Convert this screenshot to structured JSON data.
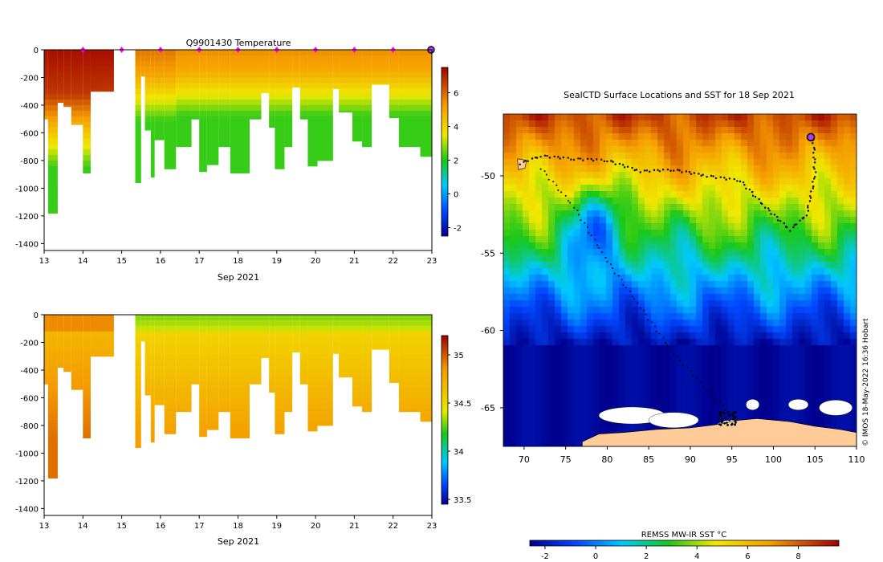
{
  "chart_data": [
    {
      "id": "temperature-section",
      "type": "heatmap",
      "title": "Q9901430  Temperature",
      "xlabel": "Sep 2021",
      "x_ticks": [
        "13",
        "14",
        "15",
        "16",
        "17",
        "18",
        "19",
        "20",
        "21",
        "22",
        "23"
      ],
      "xlim": [
        13,
        23
      ],
      "y_ticks": [
        "0",
        "-200",
        "-400",
        "-600",
        "-800",
        "-1000",
        "-1200",
        "-1400"
      ],
      "ylim": [
        -1450,
        0
      ],
      "colorbar_ticks": [
        "-2",
        "0",
        "2",
        "4",
        "6"
      ],
      "clim": [
        -2.5,
        7.5
      ],
      "surface_markers_day": [
        14,
        15,
        16,
        17,
        18,
        19,
        20,
        21,
        22
      ],
      "latest_marker_day": 23,
      "casts": [
        {
          "t0": 13.0,
          "t1": 13.1,
          "depth": 500
        },
        {
          "t0": 13.1,
          "t1": 13.35,
          "depth": 1180
        },
        {
          "t0": 13.35,
          "t1": 13.5,
          "depth": 380
        },
        {
          "t0": 13.5,
          "t1": 13.7,
          "depth": 410
        },
        {
          "t0": 13.7,
          "t1": 14.0,
          "depth": 540
        },
        {
          "t0": 14.0,
          "t1": 14.2,
          "depth": 890
        },
        {
          "t0": 14.2,
          "t1": 14.8,
          "depth": 300
        },
        {
          "t0": 15.35,
          "t1": 15.5,
          "depth": 960
        },
        {
          "t0": 15.5,
          "t1": 15.6,
          "depth": 190
        },
        {
          "t0": 15.6,
          "t1": 15.75,
          "depth": 580
        },
        {
          "t0": 15.75,
          "t1": 15.85,
          "depth": 920
        },
        {
          "t0": 15.85,
          "t1": 16.1,
          "depth": 650
        },
        {
          "t0": 16.1,
          "t1": 16.4,
          "depth": 860
        },
        {
          "t0": 16.4,
          "t1": 16.8,
          "depth": 700
        },
        {
          "t0": 16.8,
          "t1": 17.0,
          "depth": 500
        },
        {
          "t0": 17.0,
          "t1": 17.2,
          "depth": 880
        },
        {
          "t0": 17.2,
          "t1": 17.5,
          "depth": 830
        },
        {
          "t0": 17.5,
          "t1": 17.8,
          "depth": 700
        },
        {
          "t0": 17.8,
          "t1": 18.3,
          "depth": 890
        },
        {
          "t0": 18.3,
          "t1": 18.6,
          "depth": 500
        },
        {
          "t0": 18.6,
          "t1": 18.8,
          "depth": 310
        },
        {
          "t0": 18.8,
          "t1": 18.95,
          "depth": 560
        },
        {
          "t0": 18.95,
          "t1": 19.2,
          "depth": 860
        },
        {
          "t0": 19.2,
          "t1": 19.4,
          "depth": 700
        },
        {
          "t0": 19.4,
          "t1": 19.6,
          "depth": 270
        },
        {
          "t0": 19.6,
          "t1": 19.8,
          "depth": 500
        },
        {
          "t0": 19.8,
          "t1": 20.05,
          "depth": 840
        },
        {
          "t0": 20.05,
          "t1": 20.45,
          "depth": 800
        },
        {
          "t0": 20.45,
          "t1": 20.6,
          "depth": 280
        },
        {
          "t0": 20.6,
          "t1": 20.95,
          "depth": 450
        },
        {
          "t0": 20.95,
          "t1": 21.2,
          "depth": 660
        },
        {
          "t0": 21.2,
          "t1": 21.45,
          "depth": 700
        },
        {
          "t0": 21.45,
          "t1": 21.9,
          "depth": 250
        },
        {
          "t0": 21.9,
          "t1": 22.15,
          "depth": 490
        },
        {
          "t0": 22.15,
          "t1": 22.7,
          "depth": 700
        },
        {
          "t0": 22.7,
          "t1": 23.0,
          "depth": 770
        }
      ]
    },
    {
      "id": "salinity-section",
      "type": "heatmap",
      "title": "",
      "xlabel": "Sep 2021",
      "x_ticks": [
        "13",
        "14",
        "15",
        "16",
        "17",
        "18",
        "19",
        "20",
        "21",
        "22",
        "23"
      ],
      "xlim": [
        13,
        23
      ],
      "y_ticks": [
        "0",
        "-200",
        "-400",
        "-600",
        "-800",
        "-1000",
        "-1200",
        "-1400"
      ],
      "ylim": [
        -1450,
        0
      ],
      "colorbar_ticks": [
        "33.5",
        "34",
        "34.5",
        "35"
      ],
      "clim": [
        33.45,
        35.2
      ]
    },
    {
      "id": "sst-map",
      "type": "heatmap",
      "title": "SealCTD Surface Locations and SST for 18 Sep 2021",
      "x_ticks": [
        "70",
        "75",
        "80",
        "85",
        "90",
        "95",
        "100",
        "105",
        "110"
      ],
      "xlim": [
        67.5,
        110
      ],
      "y_ticks": [
        "-50",
        "-55",
        "-60",
        "-65"
      ],
      "ylim": [
        -67.5,
        -46
      ],
      "colorbar_label": "REMSS MW-IR SST °C",
      "colorbar_ticks": [
        "-2",
        "0",
        "2",
        "4",
        "6",
        "8"
      ],
      "clim": [
        -2.6,
        9.6
      ],
      "track_waypoints": [
        {
          "lon": 69.5,
          "lat": -49.2
        },
        {
          "lon": 72,
          "lat": -48.7
        },
        {
          "lon": 76,
          "lat": -48.9
        },
        {
          "lon": 80,
          "lat": -49.0
        },
        {
          "lon": 84,
          "lat": -49.7
        },
        {
          "lon": 88,
          "lat": -49.6
        },
        {
          "lon": 92,
          "lat": -50.0
        },
        {
          "lon": 96,
          "lat": -50.3
        },
        {
          "lon": 99,
          "lat": -52.0
        },
        {
          "lon": 102,
          "lat": -53.5
        },
        {
          "lon": 104,
          "lat": -52.5
        },
        {
          "lon": 105,
          "lat": -50.0
        },
        {
          "lon": 104.8,
          "lat": -47.5
        }
      ],
      "track_south": [
        {
          "lon": 72,
          "lat": -49.5
        },
        {
          "lon": 76,
          "lat": -52
        },
        {
          "lon": 80,
          "lat": -55.5
        },
        {
          "lon": 84,
          "lat": -58.5
        },
        {
          "lon": 88,
          "lat": -61.5
        },
        {
          "lon": 92,
          "lat": -63.8
        },
        {
          "lon": 95,
          "lat": -65.5
        }
      ],
      "latest_position": {
        "lon": 104.5,
        "lat": -47.5
      }
    }
  ],
  "footer": {
    "credit": "© IMOS 18-May-2022 16:36 Hobart"
  }
}
